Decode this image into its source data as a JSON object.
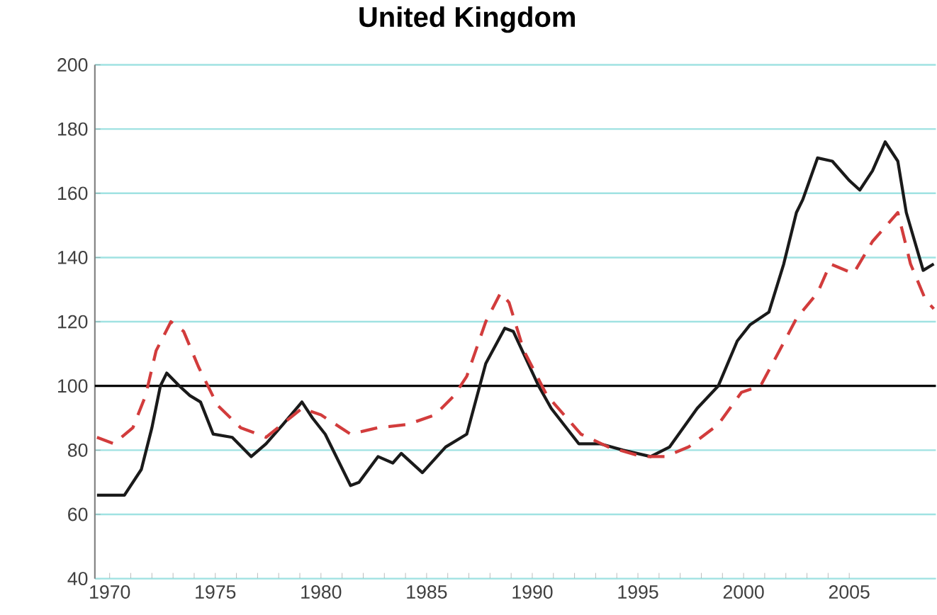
{
  "chart_data": {
    "type": "line",
    "title": "United Kingdom",
    "xlim": [
      1969.3,
      2009.1
    ],
    "xticks": [
      1970,
      1975,
      1980,
      1985,
      1990,
      1995,
      2000,
      2005
    ],
    "ylim": [
      40,
      200
    ],
    "yticks": [
      40,
      60,
      80,
      100,
      120,
      140,
      160,
      180,
      200
    ],
    "grid": "y",
    "marker": "none",
    "ref_lines": [
      {
        "axis": "y",
        "value": 100,
        "color": "#000000"
      }
    ],
    "series": [
      {
        "color": "#1a1a1a",
        "line_style": "solid",
        "x": [
          1969.4,
          1970.7,
          1971.5,
          1972.0,
          1972.4,
          1972.7,
          1973.3,
          1973.8,
          1974.3,
          1974.9,
          1975.8,
          1976.7,
          1977.4,
          1978.2,
          1979.1,
          1979.6,
          1980.2,
          1981.4,
          1981.8,
          1982.7,
          1983.4,
          1983.8,
          1984.8,
          1985.9,
          1986.9,
          1987.8,
          1988.7,
          1989.1,
          1990.3,
          1990.9,
          1992.2,
          1993.2,
          1994.3,
          1995.6,
          1996.5,
          1997.8,
          1998.8,
          1999.7,
          2000.3,
          2001.2,
          2001.9,
          2002.5,
          2002.8,
          2003.5,
          2004.2,
          2005.0,
          2005.5,
          2006.1,
          2006.7,
          2007.3,
          2007.7,
          2008.5,
          2009.0
        ],
        "values": [
          66,
          66,
          74,
          87,
          100,
          104,
          100,
          97,
          95,
          85,
          84,
          78,
          82,
          88,
          95,
          90,
          85,
          69,
          70,
          78,
          76,
          79,
          73,
          81,
          85,
          107,
          118,
          117,
          100,
          93,
          82,
          82,
          80,
          78,
          81,
          93,
          100,
          114,
          119,
          123,
          138,
          154,
          158,
          171,
          170,
          164,
          161,
          167,
          176,
          170,
          154,
          136,
          138
        ]
      },
      {
        "color": "#d23c3c",
        "line_style": "dashed",
        "x": [
          1969.4,
          1970.2,
          1971.1,
          1971.7,
          1972.2,
          1972.9,
          1973.5,
          1974.2,
          1975.1,
          1976.2,
          1977.4,
          1979.1,
          1980.0,
          1981.4,
          1982.7,
          1984.1,
          1985.4,
          1986.3,
          1986.9,
          1987.8,
          1988.5,
          1988.9,
          1989.6,
          1990.7,
          1992.3,
          1993.6,
          1995.2,
          1996.3,
          1997.4,
          1998.8,
          1999.9,
          2000.8,
          2001.7,
          2002.5,
          2003.5,
          2004.1,
          2005.2,
          2006.1,
          2007.3,
          2007.9,
          2008.6,
          2009.0
        ],
        "values": [
          84,
          82,
          87,
          97,
          111,
          120,
          117,
          106,
          94,
          87,
          84,
          93,
          91,
          85,
          87,
          88,
          91,
          97,
          103,
          120,
          129,
          126,
          111,
          97,
          85,
          81,
          78,
          78,
          81,
          88,
          98,
          100,
          111,
          121,
          129,
          138,
          135,
          145,
          154,
          138,
          127,
          124
        ]
      }
    ]
  }
}
